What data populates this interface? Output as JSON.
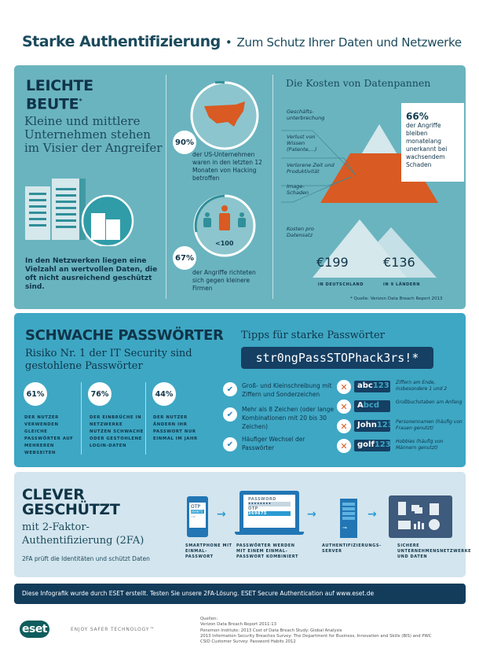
{
  "header": {
    "title": "Starke Authentifizierung",
    "bullet": "•",
    "subtitle": "Zum Schutz Ihrer Daten und Netzwerke"
  },
  "colors": {
    "panel1": "#6ab4bf",
    "panel2": "#3ea7c4",
    "panel3": "#d3e5ee",
    "footer": "#133c5b",
    "accent_orange": "#d95a22",
    "dark": "#0f3448"
  },
  "section1": {
    "heading_line1": "LEICHTE",
    "heading_line2": "BEUTE",
    "heading_mark": "*",
    "lead": "Kleine und mittlere Unternehmen stehen im Visier der Angreifer",
    "body": "In den Netzwerken liegen eine Vielzahl an wertvollen Daten, die oft nicht ausreichend geschützt sind.",
    "stat1": {
      "value": "90%",
      "text": "der US-Unternehmen waren in den letzten 12 Monaten von Hacking betroffen",
      "icon": "us-map-globe-icon"
    },
    "stat2": {
      "value": "67%",
      "text": "der Angriffe richteten sich gegen kleinere Firmen",
      "people_label": "<100",
      "icon": "people-icon"
    },
    "costs": {
      "title": "Die Kosten von Datenpannen",
      "labels": [
        "Geschäfts-unterbrechung",
        "Verlust von Wissen (Patente,...)",
        "Verlorene Zeit und Produktivität",
        "Image-Schaden"
      ],
      "callout_value": "66%",
      "callout_text": "der Angriffe bleiben monatelang unerkannt bei wachsendem Schaden",
      "per_record_label": "Kosten pro Datensatz",
      "germany_value": "€199",
      "germany_label": "in Deutschland",
      "countries_value": "€136",
      "countries_label": "in 9 Ländern",
      "source": "* Quelle: Verizon Data Breach Report 2013"
    }
  },
  "section2": {
    "heading": "SCHWACHE PASSWÖRTER",
    "lead": "Risiko Nr. 1 der IT Security sind gestohlene Passwörter",
    "stats": [
      {
        "value": "61%",
        "text": "der Nutzer verwenden gleiche Passwörter auf mehreren Webseiten"
      },
      {
        "value": "76%",
        "text": "der Einbrüche in Netzwerke nutzen schwache oder gestohlene Login-Daten"
      },
      {
        "value": "44%",
        "text": "der Nutzer ändern ihr Passwort nur einmal im Jahr"
      }
    ],
    "tips_title": "Tipps für starke Passwörter",
    "example_password": "str0ngPassSTOPhack3rs!*",
    "dos": [
      "Groß- und Kleinschreibung mit Ziffern und Sonderzeichen",
      "Mehr als 8 Zeichen (oder lange Kombinationen mit 20 bis 30 Zeichen)",
      "Häufiger Wechsel der Passwörter"
    ],
    "donts": [
      {
        "a": "abc",
        "b": "123",
        "text": "Ziffern am Ende, insbesondere 1 und 2"
      },
      {
        "a": "A",
        "b": "bcd",
        "text": "Großbuchstaben am Anfang"
      },
      {
        "a": "John",
        "b": "123",
        "text": "Personennamen (häufig von Frauen genutzt)"
      },
      {
        "a": "golf",
        "b": "123",
        "text": "Hobbies (häufig von Männern genutzt)"
      }
    ]
  },
  "section3": {
    "heading_line1": "CLEVER",
    "heading_line2": "GESCHÜTZT",
    "lead": "mit 2-Faktor-Authentifizierung (2FA)",
    "body": "2FA prüft die Identitäten und schützt Daten",
    "phone": {
      "otp_label": "OTP",
      "otp_code": "369875",
      "caption": "Smartphone mit Einmal-Passwort"
    },
    "laptop": {
      "password_label": "PASSWORD",
      "password_mask": "••••••••",
      "otp_label": "OTP",
      "otp_code": "369875",
      "caption": "Passwörter werden mit einem Einmal-Passwort kombiniert"
    },
    "server": {
      "caption": "Authentifizierungs-Server"
    },
    "network": {
      "caption": "Sichere Unternehmensnetzwerke und Daten"
    },
    "arrow": "→"
  },
  "footer": {
    "text": "Diese Infografik wurde durch ESET erstellt. Testen Sie unsere 2FA-Lösung. ESET Secure Authentication auf www.eset.de"
  },
  "brand": {
    "logo": "eset",
    "tagline": "ENJOY SAFER TECHNOLOGY™"
  },
  "sources": {
    "title": "Quellen:",
    "items": [
      "Verizon Data Breach Report 2011-13",
      "Ponemon Institute: 2013 Cost of Data Breach Study: Global Analysis",
      "2013 Information Security Breaches Survey: The Department for Business, Innovation and Skills (BIS) and PWC",
      "CSID Customer Survey: Password Habits 2012"
    ]
  }
}
